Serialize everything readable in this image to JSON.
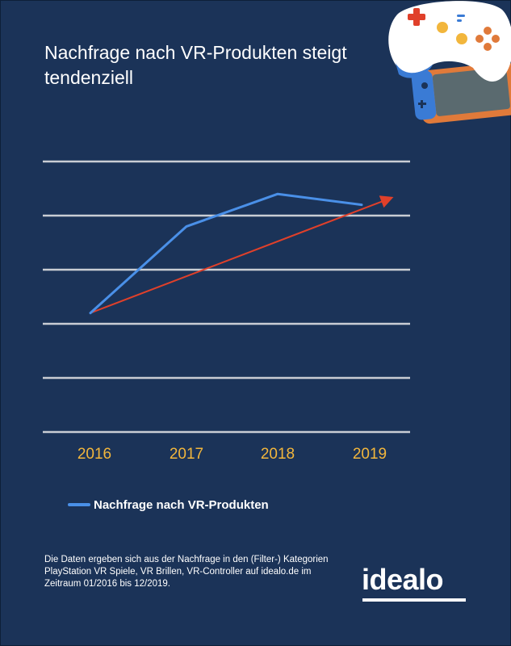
{
  "title": "Nachfrage nach VR-Produkten steigt tendenziell",
  "legend": {
    "label": "Nachfrage nach VR-Produkten"
  },
  "footnote": "Die Daten ergeben sich aus der Nachfrage in den (Filter-) Kategorien PlayStation VR Spiele, VR Brillen, VR-Controller auf idealo.de im Zeitraum 01/2016 bis 12/2019.",
  "logo": {
    "text": "idealo"
  },
  "colors": {
    "background": "#1b3358",
    "series": "#4a90e8",
    "trend": "#e0402a",
    "grid": "#c9cdd4",
    "tick": "#f2b63c"
  },
  "chart_data": {
    "type": "line",
    "categories": [
      "2016",
      "2017",
      "2018",
      "2019"
    ],
    "series": [
      {
        "name": "Nachfrage nach VR-Produkten",
        "values": [
          2.2,
          3.8,
          4.4,
          4.2
        ]
      }
    ],
    "trendline": {
      "values": [
        2.2,
        4.3
      ],
      "from": "2016",
      "to": "2019"
    },
    "ylim": [
      0,
      5
    ],
    "yticks_shown": false,
    "grid": true,
    "legend_position": "bottom-left"
  }
}
